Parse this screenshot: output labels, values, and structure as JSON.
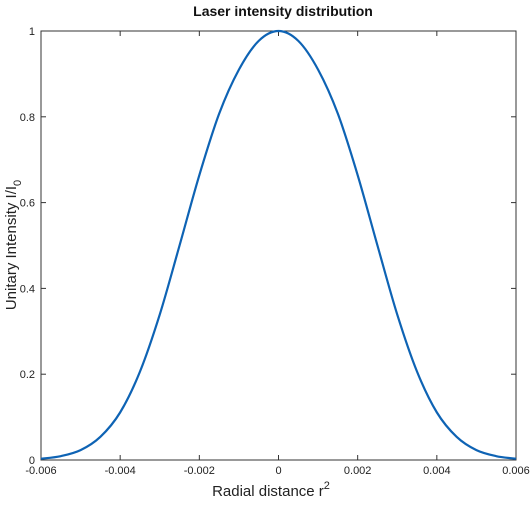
{
  "chart_data": {
    "type": "line",
    "title": "Laser intensity distribution",
    "xlabel": {
      "text": "Radial distance r",
      "sup": "2"
    },
    "ylabel": {
      "text": "Unitary Intensity I/I",
      "sub": "0"
    },
    "xlim": [
      -0.006,
      0.006
    ],
    "ylim": [
      0,
      1
    ],
    "x_ticks": [
      -0.006,
      -0.004,
      -0.002,
      0,
      0.002,
      0.004,
      0.006
    ],
    "x_tick_labels": [
      "-0.006",
      "-0.004",
      "-0.002",
      "0",
      "0.002",
      "0.004",
      "0.006"
    ],
    "y_ticks": [
      0,
      0.2,
      0.4,
      0.6,
      0.8,
      1
    ],
    "y_tick_labels": [
      "0",
      "0.2",
      "0.4",
      "0.6",
      "0.8",
      "1"
    ],
    "grid": false,
    "series": [
      {
        "color": "#0e63b4",
        "x": [
          -0.006,
          -0.0055,
          -0.005,
          -0.0045,
          -0.004,
          -0.0035,
          -0.003,
          -0.0025,
          -0.002,
          -0.0015,
          -0.001,
          -0.0005,
          0,
          0.0005,
          0.001,
          0.0015,
          0.002,
          0.0025,
          0.003,
          0.0035,
          0.004,
          0.0045,
          0.005,
          0.0055,
          0.006
        ],
        "y": [
          0.003,
          0.009,
          0.023,
          0.054,
          0.111,
          0.206,
          0.339,
          0.5,
          0.664,
          0.807,
          0.91,
          0.977,
          1.0,
          0.977,
          0.91,
          0.807,
          0.664,
          0.5,
          0.339,
          0.206,
          0.111,
          0.054,
          0.023,
          0.009,
          0.003
        ]
      }
    ]
  }
}
